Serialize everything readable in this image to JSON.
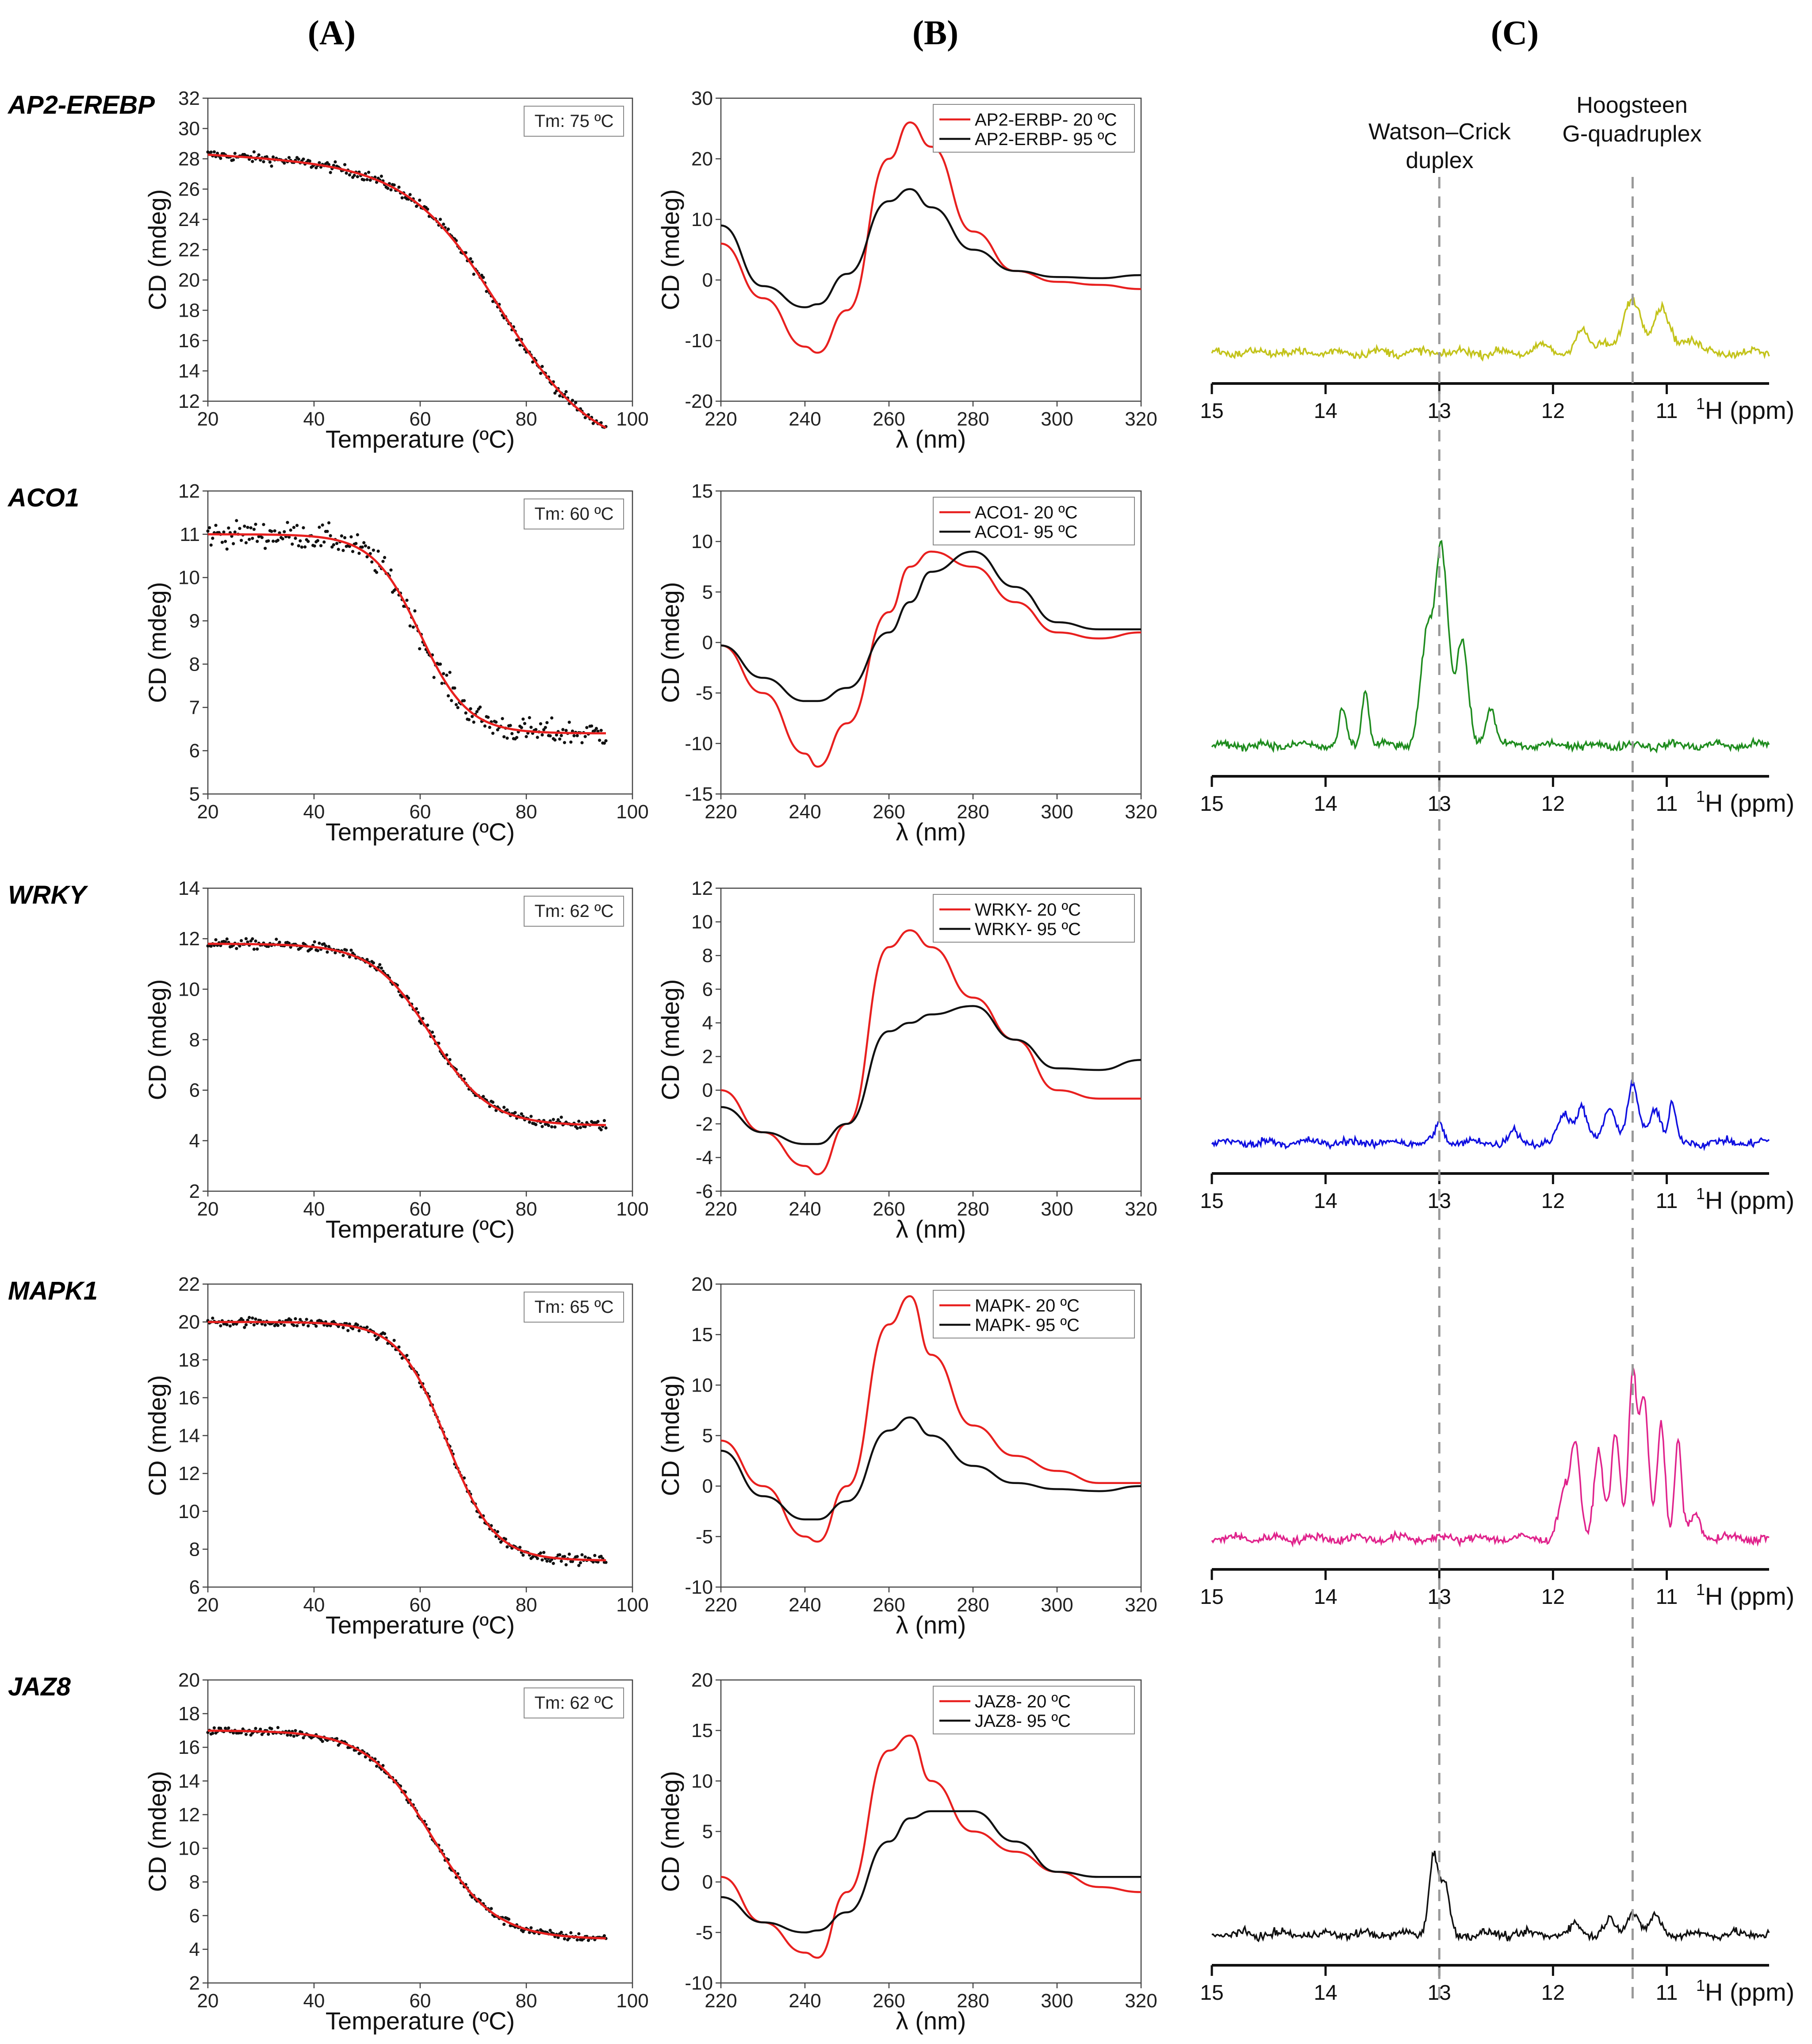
{
  "panel_letters": [
    "(A)",
    "(B)",
    "(C)"
  ],
  "annotations": {
    "watson_crick": [
      "Watson–Crick",
      "duplex"
    ],
    "hoogsteen": [
      "Hoogsteen",
      "G-quadruplex"
    ]
  },
  "colors": {
    "fit_red": "#e8201f",
    "points": "#111111",
    "cd_20": "#e8201f",
    "cd_95": "#111111",
    "dashed": "#999999"
  },
  "chart_data": {
    "melting": {
      "type": "scatter",
      "xlabel": "Temperature (ºC)",
      "ylabel": "CD (mdeg)",
      "xlim": [
        20,
        100
      ],
      "xticks": [
        20,
        40,
        60,
        80,
        100
      ],
      "rows": [
        {
          "gene": "AP2-EREBP",
          "tm_label": "Tm: 75 ºC",
          "tm": 75,
          "top": 28.3,
          "bottom": 10.0,
          "slope": 0.018,
          "width": 8.5,
          "noise": 0.35,
          "ylim": [
            12,
            32
          ],
          "yticks": [
            12,
            14,
            16,
            18,
            20,
            22,
            24,
            26,
            28,
            30,
            32
          ]
        },
        {
          "gene": "ACO1",
          "tm_label": "Tm: 60 ºC",
          "tm": 60,
          "top": 11.0,
          "bottom": 6.4,
          "slope": 0,
          "width": 4.5,
          "noise": 0.3,
          "ylim": [
            5,
            12
          ],
          "yticks": [
            5,
            6,
            7,
            8,
            9,
            10,
            11,
            12
          ]
        },
        {
          "gene": "WRKY",
          "tm_label": "Tm: 62 ºC",
          "tm": 62,
          "top": 11.8,
          "bottom": 4.6,
          "slope": 0,
          "width": 5.5,
          "noise": 0.2,
          "ylim": [
            2,
            14
          ],
          "yticks": [
            2,
            4,
            6,
            8,
            10,
            12,
            14
          ]
        },
        {
          "gene": "MAPK1",
          "tm_label": "Tm: 65 ºC",
          "tm": 65,
          "top": 20.0,
          "bottom": 7.4,
          "slope": 0,
          "width": 4.5,
          "noise": 0.25,
          "ylim": [
            6,
            22
          ],
          "yticks": [
            6,
            8,
            10,
            12,
            14,
            16,
            18,
            20,
            22
          ]
        },
        {
          "gene": "JAZ8",
          "tm_label": "Tm: 62 ºC",
          "tm": 62,
          "top": 17.0,
          "bottom": 4.6,
          "slope": 0,
          "width": 6.0,
          "noise": 0.25,
          "ylim": [
            2,
            20
          ],
          "yticks": [
            2,
            4,
            6,
            8,
            10,
            12,
            14,
            16,
            18,
            20
          ]
        }
      ]
    },
    "spectra": {
      "type": "line",
      "xlabel": "λ (nm)",
      "ylabel": "CD (mdeg)",
      "xlim": [
        220,
        320
      ],
      "xticks": [
        220,
        240,
        260,
        280,
        300,
        320
      ],
      "x": [
        220,
        230,
        240,
        243,
        250,
        260,
        265,
        270,
        280,
        290,
        300,
        310,
        320
      ],
      "rows": [
        {
          "ylim": [
            -20,
            30
          ],
          "yticks": [
            -20,
            -10,
            0,
            10,
            20,
            30
          ],
          "series": [
            {
              "name": "AP2-ERBP- 20 ºC",
              "values": [
                6.0,
                -3.0,
                -11.0,
                -12.0,
                -5.0,
                20.0,
                26.0,
                22.0,
                8.0,
                1.5,
                -0.3,
                -0.8,
                -1.5
              ]
            },
            {
              "name": "AP2-ERBP- 95 ºC",
              "values": [
                9.0,
                -1.0,
                -4.5,
                -4.0,
                1.0,
                13.0,
                15.0,
                12.0,
                5.0,
                1.5,
                0.5,
                0.3,
                0.8
              ]
            }
          ]
        },
        {
          "ylim": [
            -15,
            15
          ],
          "yticks": [
            -15,
            -10,
            -5,
            0,
            5,
            10,
            15
          ],
          "series": [
            {
              "name": "ACO1- 20 ºC",
              "values": [
                -0.3,
                -5.0,
                -11.0,
                -12.3,
                -8.0,
                3.0,
                7.5,
                9.0,
                7.5,
                4.0,
                1.0,
                0.4,
                1.0
              ]
            },
            {
              "name": "ACO1- 95 ºC",
              "values": [
                -0.3,
                -3.5,
                -5.8,
                -5.8,
                -4.5,
                1.0,
                4.0,
                7.0,
                9.0,
                5.5,
                2.0,
                1.3,
                1.3
              ]
            }
          ]
        },
        {
          "ylim": [
            -6,
            12
          ],
          "yticks": [
            -6,
            -4,
            -2,
            0,
            2,
            4,
            6,
            8,
            10,
            12
          ],
          "series": [
            {
              "name": "WRKY- 20 ºC",
              "values": [
                0.0,
                -2.5,
                -4.5,
                -5.0,
                -2.0,
                8.5,
                9.5,
                8.5,
                5.5,
                3.0,
                0.0,
                -0.5,
                -0.5
              ]
            },
            {
              "name": "WRKY- 95 ºC",
              "values": [
                -1.0,
                -2.5,
                -3.2,
                -3.2,
                -2.0,
                3.5,
                4.0,
                4.5,
                5.0,
                3.0,
                1.3,
                1.2,
                1.8
              ]
            }
          ]
        },
        {
          "ylim": [
            -10,
            20
          ],
          "yticks": [
            -10,
            -5,
            0,
            5,
            10,
            15,
            20
          ],
          "series": [
            {
              "name": "MAPK- 20 ºC",
              "values": [
                4.5,
                0.0,
                -5.0,
                -5.5,
                0.0,
                16.0,
                18.8,
                13.0,
                6.0,
                3.0,
                1.5,
                0.3,
                0.3
              ]
            },
            {
              "name": "MAPK- 95 ºC",
              "values": [
                3.5,
                -1.0,
                -3.3,
                -3.3,
                -1.5,
                5.5,
                6.8,
                5.0,
                2.0,
                0.3,
                -0.3,
                -0.5,
                0.0
              ]
            }
          ]
        },
        {
          "ylim": [
            -10,
            20
          ],
          "yticks": [
            -10,
            -5,
            0,
            5,
            10,
            15,
            20
          ],
          "series": [
            {
              "name": "JAZ8- 20 ºC",
              "values": [
                0.5,
                -4.0,
                -7.0,
                -7.5,
                -1.0,
                13.0,
                14.5,
                10.0,
                5.0,
                3.0,
                1.0,
                -0.5,
                -1.0
              ]
            },
            {
              "name": "JAZ8- 95 ºC",
              "values": [
                -1.5,
                -4.0,
                -5.0,
                -4.8,
                -3.0,
                4.0,
                6.3,
                7.0,
                7.0,
                4.0,
                1.0,
                0.5,
                0.5
              ]
            }
          ]
        }
      ]
    },
    "nmr": {
      "type": "line",
      "xlabel": "H (ppm)",
      "xlabel_superscript": "1",
      "xlim": [
        15,
        10.1
      ],
      "xticks": [
        15,
        14,
        13,
        12,
        11
      ],
      "markers_ppm": [
        13.0,
        11.3
      ],
      "rows": [
        {
          "color": "#c3c31b",
          "peaks": [
            [
              11.3,
              0.45,
              0.08
            ],
            [
              11.05,
              0.38,
              0.07
            ],
            [
              11.75,
              0.18,
              0.06
            ],
            [
              11.55,
              0.1,
              0.05
            ],
            [
              10.8,
              0.12,
              0.08
            ],
            [
              12.1,
              0.06,
              0.05
            ]
          ]
        },
        {
          "color": "#1e8c1e",
          "peaks": [
            [
              13.1,
              1.0,
              0.06
            ],
            [
              12.95,
              1.1,
              0.05
            ],
            [
              12.8,
              0.9,
              0.05
            ],
            [
              13.0,
              0.8,
              0.04
            ],
            [
              12.55,
              0.35,
              0.04
            ],
            [
              13.65,
              0.5,
              0.03
            ],
            [
              13.85,
              0.3,
              0.03
            ]
          ]
        },
        {
          "color": "#1010e0",
          "peaks": [
            [
              11.3,
              0.5,
              0.05
            ],
            [
              11.75,
              0.32,
              0.05
            ],
            [
              11.9,
              0.25,
              0.05
            ],
            [
              11.5,
              0.3,
              0.05
            ],
            [
              11.1,
              0.3,
              0.05
            ],
            [
              10.95,
              0.35,
              0.03
            ],
            [
              13.0,
              0.15,
              0.04
            ],
            [
              12.35,
              0.1,
              0.04
            ]
          ]
        },
        {
          "color": "#e0238c",
          "peaks": [
            [
              11.3,
              1.45,
              0.035
            ],
            [
              11.2,
              1.2,
              0.04
            ],
            [
              11.05,
              1.0,
              0.035
            ],
            [
              10.9,
              0.85,
              0.03
            ],
            [
              11.8,
              0.8,
              0.04
            ],
            [
              11.6,
              0.75,
              0.04
            ],
            [
              11.45,
              0.9,
              0.04
            ],
            [
              11.9,
              0.4,
              0.05
            ],
            [
              10.75,
              0.2,
              0.05
            ]
          ]
        },
        {
          "color": "#111111",
          "peaks": [
            [
              13.05,
              0.7,
              0.04
            ],
            [
              12.95,
              0.4,
              0.04
            ],
            [
              11.3,
              0.2,
              0.05
            ],
            [
              11.5,
              0.12,
              0.05
            ],
            [
              11.1,
              0.15,
              0.05
            ],
            [
              11.8,
              0.08,
              0.05
            ]
          ]
        }
      ]
    }
  }
}
